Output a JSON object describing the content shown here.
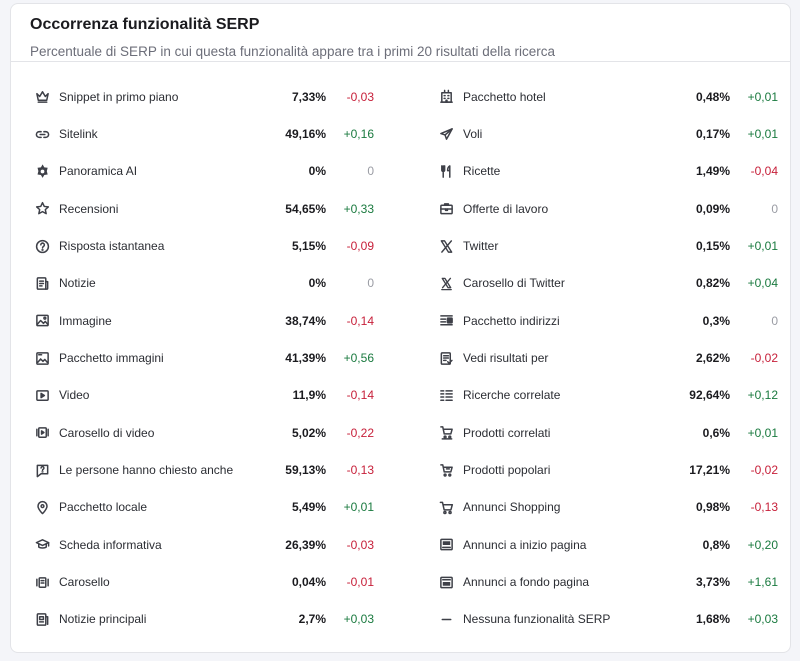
{
  "widget": {
    "title": "Occorrenza funzionalità SERP",
    "subtitle": "Percentuale di SERP in cui questa funzionalità appare tra i primi 20 risultati della ricerca"
  },
  "features_left": [
    {
      "label": "Snippet in primo piano",
      "percent": "7,33%",
      "delta": "-0,03",
      "trend": "neg",
      "icon": "crown-icon"
    },
    {
      "label": "Sitelink",
      "percent": "49,16%",
      "delta": "+0,16",
      "trend": "pos",
      "icon": "link-icon"
    },
    {
      "label": "Panoramica AI",
      "percent": "0%",
      "delta": "0",
      "trend": "zero",
      "icon": "ai-overview-icon"
    },
    {
      "label": "Recensioni",
      "percent": "54,65%",
      "delta": "+0,33",
      "trend": "pos",
      "icon": "star-icon"
    },
    {
      "label": "Risposta istantanea",
      "percent": "5,15%",
      "delta": "-0,09",
      "trend": "neg",
      "icon": "question-icon"
    },
    {
      "label": "Notizie",
      "percent": "0%",
      "delta": "0",
      "trend": "zero",
      "icon": "news-icon"
    },
    {
      "label": "Immagine",
      "percent": "38,74%",
      "delta": "-0,14",
      "trend": "neg",
      "icon": "image-icon"
    },
    {
      "label": "Pacchetto immagini",
      "percent": "41,39%",
      "delta": "+0,56",
      "trend": "pos",
      "icon": "image-pack-icon"
    },
    {
      "label": "Video",
      "percent": "11,9%",
      "delta": "-0,14",
      "trend": "neg",
      "icon": "video-icon"
    },
    {
      "label": "Carosello di video",
      "percent": "5,02%",
      "delta": "-0,22",
      "trend": "neg",
      "icon": "video-carousel-icon"
    },
    {
      "label": "Le persone hanno chiesto anche",
      "percent": "59,13%",
      "delta": "-0,13",
      "trend": "neg",
      "icon": "people-ask-icon"
    },
    {
      "label": "Pacchetto locale",
      "percent": "5,49%",
      "delta": "+0,01",
      "trend": "pos",
      "icon": "location-pin-icon"
    },
    {
      "label": "Scheda informativa",
      "percent": "26,39%",
      "delta": "-0,03",
      "trend": "neg",
      "icon": "graduation-cap-icon"
    },
    {
      "label": "Carosello",
      "percent": "0,04%",
      "delta": "-0,01",
      "trend": "neg",
      "icon": "carousel-icon"
    },
    {
      "label": "Notizie principali",
      "percent": "2,7%",
      "delta": "+0,03",
      "trend": "pos",
      "icon": "top-stories-icon"
    }
  ],
  "features_right": [
    {
      "label": "Pacchetto hotel",
      "percent": "0,48%",
      "delta": "+0,01",
      "trend": "pos",
      "icon": "hotel-icon"
    },
    {
      "label": "Voli",
      "percent": "0,17%",
      "delta": "+0,01",
      "trend": "pos",
      "icon": "plane-icon"
    },
    {
      "label": "Ricette",
      "percent": "1,49%",
      "delta": "-0,04",
      "trend": "neg",
      "icon": "fork-knife-icon"
    },
    {
      "label": "Offerte di lavoro",
      "percent": "0,09%",
      "delta": "0",
      "trend": "zero",
      "icon": "briefcase-icon"
    },
    {
      "label": "Twitter",
      "percent": "0,15%",
      "delta": "+0,01",
      "trend": "pos",
      "icon": "x-logo-icon"
    },
    {
      "label": "Carosello di Twitter",
      "percent": "0,82%",
      "delta": "+0,04",
      "trend": "pos",
      "icon": "x-carousel-icon"
    },
    {
      "label": "Pacchetto indirizzi",
      "percent": "0,3%",
      "delta": "0",
      "trend": "zero",
      "icon": "address-pack-icon"
    },
    {
      "label": "Vedi risultati per",
      "percent": "2,62%",
      "delta": "-0,02",
      "trend": "neg",
      "icon": "see-results-icon"
    },
    {
      "label": "Ricerche correlate",
      "percent": "92,64%",
      "delta": "+0,12",
      "trend": "pos",
      "icon": "related-searches-icon"
    },
    {
      "label": "Prodotti correlati",
      "percent": "0,6%",
      "delta": "+0,01",
      "trend": "pos",
      "icon": "related-products-icon"
    },
    {
      "label": "Prodotti popolari",
      "percent": "17,21%",
      "delta": "-0,02",
      "trend": "neg",
      "icon": "popular-products-icon"
    },
    {
      "label": "Annunci Shopping",
      "percent": "0,98%",
      "delta": "-0,13",
      "trend": "neg",
      "icon": "shopping-cart-icon"
    },
    {
      "label": "Annunci a inizio pagina",
      "percent": "0,8%",
      "delta": "+0,20",
      "trend": "pos",
      "icon": "ad-top-icon"
    },
    {
      "label": "Annunci a fondo pagina",
      "percent": "3,73%",
      "delta": "+1,61",
      "trend": "pos",
      "icon": "ad-bottom-icon"
    },
    {
      "label": "Nessuna funzionalità SERP",
      "percent": "1,68%",
      "delta": "+0,03",
      "trend": "pos",
      "icon": "dash-icon"
    }
  ],
  "colors": {
    "positive": "#1a7a3f",
    "negative": "#c7203a",
    "neutral": "#9a9ca4"
  }
}
